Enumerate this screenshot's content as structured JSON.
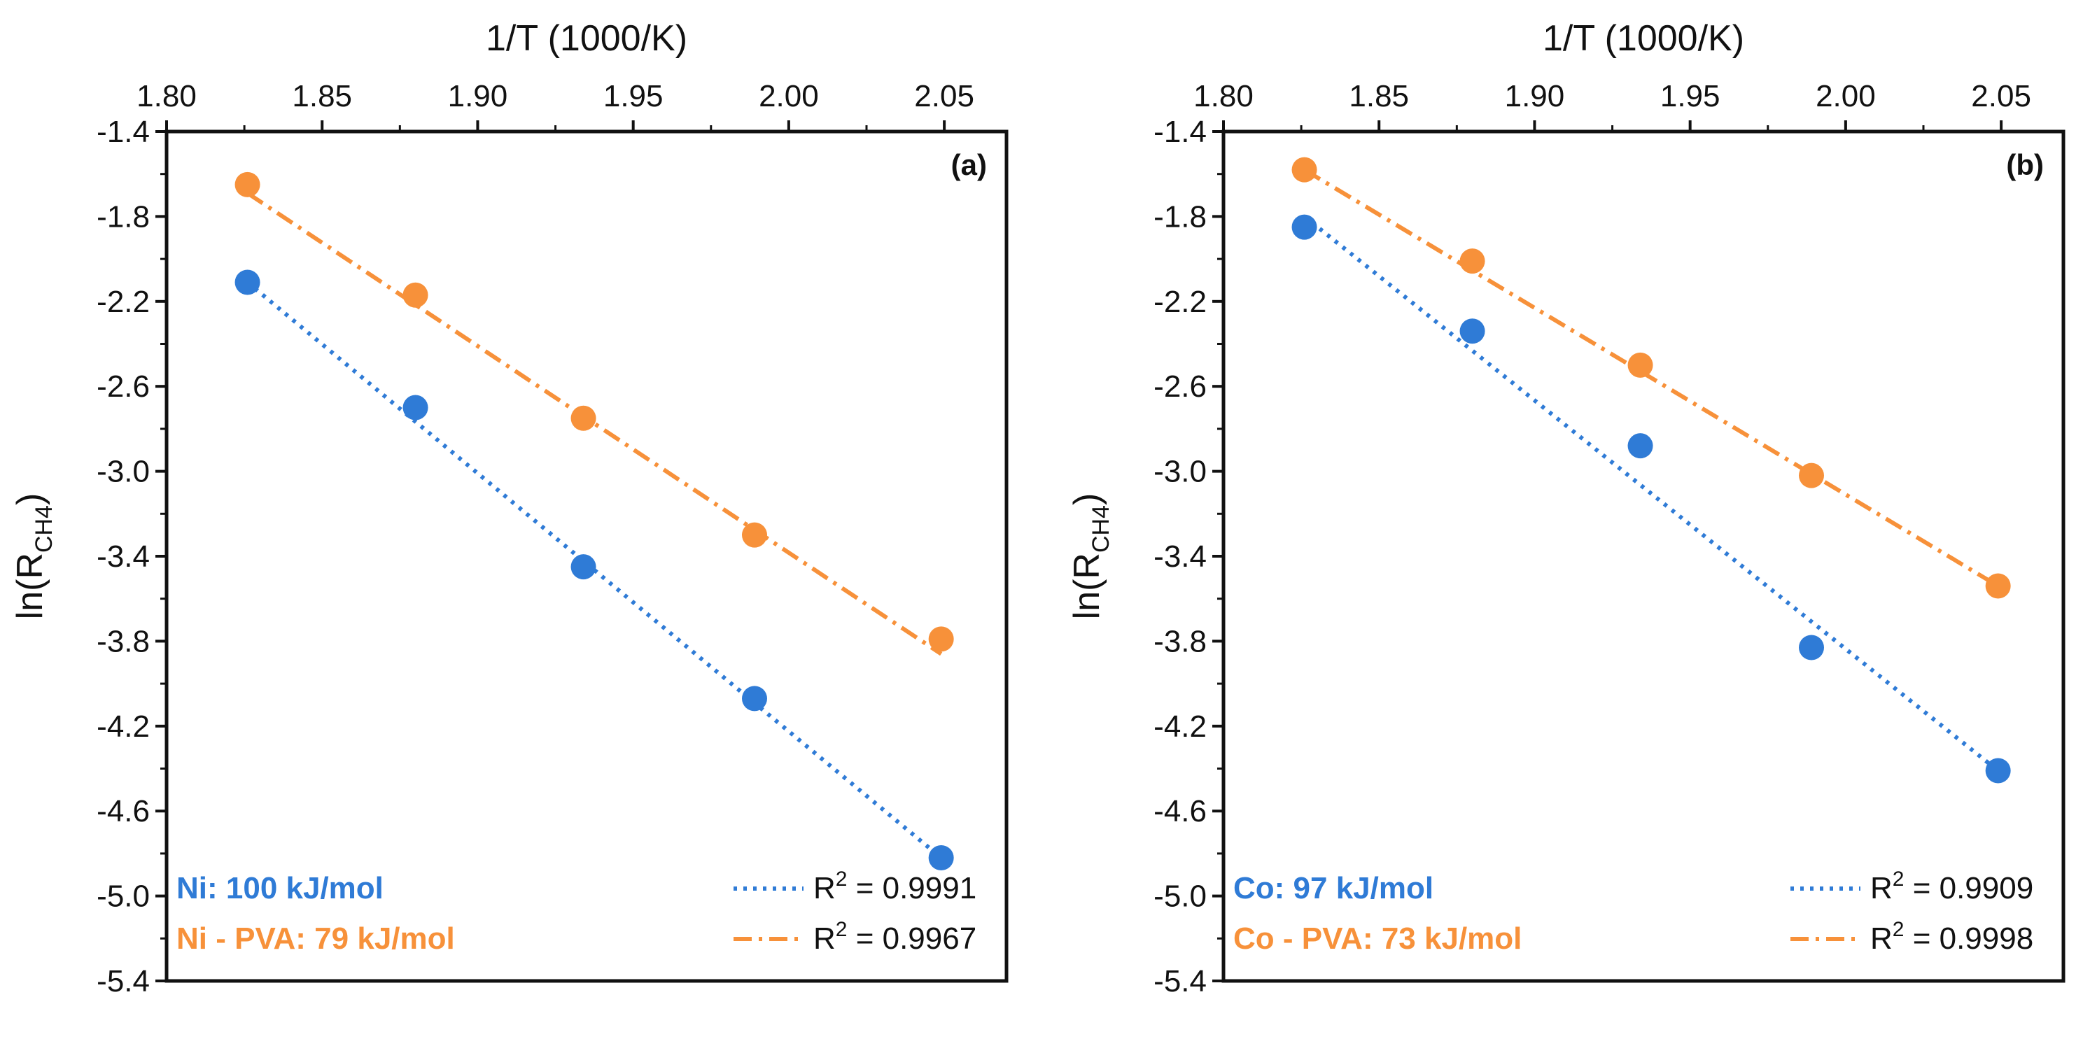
{
  "colors": {
    "blue": "#2f7bd6",
    "orange": "#f7913a",
    "axis": "#111111"
  },
  "chart_data": [
    {
      "type": "scatter",
      "panel_label": "(a)",
      "xlabel": "1/T (1000/K)",
      "ylabel_main": "ln(R",
      "ylabel_sub": "CH4",
      "ylabel_close": ")",
      "xlim": [
        1.8,
        2.07
      ],
      "ylim": [
        -5.4,
        -1.4
      ],
      "x_ticks": [
        1.8,
        1.85,
        1.9,
        1.95,
        2.0,
        2.05
      ],
      "x_tick_labels": [
        "1.80",
        "1.85",
        "1.90",
        "1.95",
        "2.00",
        "2.05"
      ],
      "y_ticks": [
        -1.4,
        -1.8,
        -2.2,
        -2.6,
        -3.0,
        -3.4,
        -3.8,
        -4.2,
        -4.6,
        -5.0,
        -5.4
      ],
      "y_tick_labels": [
        "-1.4",
        "-1.8",
        "-2.2",
        "-2.6",
        "-3.0",
        "-3.4",
        "-3.8",
        "-4.2",
        "-4.6",
        "-5.0",
        "-5.4"
      ],
      "series": [
        {
          "name": "Ni",
          "color_key": "blue",
          "line_style": "dotted",
          "x": [
            1.826,
            1.88,
            1.934,
            1.989,
            2.049
          ],
          "y": [
            -2.11,
            -2.7,
            -3.45,
            -4.07,
            -4.82
          ],
          "fit": [
            [
              1.826,
              -2.11
            ],
            [
              2.049,
              -4.82
            ]
          ],
          "label": "Ni: 100 kJ/mol",
          "r2_prefix": "R",
          "r2_sup": "2",
          "r2_value": " = 0.9991"
        },
        {
          "name": "Ni - PVA",
          "color_key": "orange",
          "line_style": "dashdot",
          "x": [
            1.826,
            1.88,
            1.934,
            1.989,
            2.049
          ],
          "y": [
            -1.65,
            -2.17,
            -2.75,
            -3.3,
            -3.79
          ],
          "fit": [
            [
              1.826,
              -1.69
            ],
            [
              2.049,
              -3.86
            ]
          ],
          "label": "Ni - PVA: 79 kJ/mol",
          "r2_prefix": "R",
          "r2_sup": "2",
          "r2_value": " = 0.9967"
        }
      ]
    },
    {
      "type": "scatter",
      "panel_label": "(b)",
      "xlabel": "1/T (1000/K)",
      "ylabel_main": "ln(R",
      "ylabel_sub": "CH4",
      "ylabel_close": ")",
      "xlim": [
        1.8,
        2.07
      ],
      "ylim": [
        -5.4,
        -1.4
      ],
      "x_ticks": [
        1.8,
        1.85,
        1.9,
        1.95,
        2.0,
        2.05
      ],
      "x_tick_labels": [
        "1.80",
        "1.85",
        "1.90",
        "1.95",
        "2.00",
        "2.05"
      ],
      "y_ticks": [
        -1.4,
        -1.8,
        -2.2,
        -2.6,
        -3.0,
        -3.4,
        -3.8,
        -4.2,
        -4.6,
        -5.0,
        -5.4
      ],
      "y_tick_labels": [
        "-1.4",
        "-1.8",
        "-2.2",
        "-2.6",
        "-3.0",
        "-3.4",
        "-3.8",
        "-4.2",
        "-4.6",
        "-5.0",
        "-5.4"
      ],
      "series": [
        {
          "name": "Co",
          "color_key": "blue",
          "line_style": "dotted",
          "x": [
            1.826,
            1.88,
            1.934,
            1.989,
            2.049
          ],
          "y": [
            -1.85,
            -2.34,
            -2.88,
            -3.83,
            -4.41
          ],
          "fit": [
            [
              1.826,
              -1.8
            ],
            [
              2.049,
              -4.41
            ]
          ],
          "label": "Co: 97 kJ/mol",
          "r2_prefix": "R",
          "r2_sup": "2",
          "r2_value": " = 0.9909"
        },
        {
          "name": "Co - PVA",
          "color_key": "orange",
          "line_style": "dashdot",
          "x": [
            1.826,
            1.88,
            1.934,
            1.989,
            2.049
          ],
          "y": [
            -1.58,
            -2.01,
            -2.5,
            -3.02,
            -3.54
          ],
          "fit": [
            [
              1.826,
              -1.58
            ],
            [
              2.049,
              -3.54
            ]
          ],
          "label": "Co - PVA: 73 kJ/mol",
          "r2_prefix": "R",
          "r2_sup": "2",
          "r2_value": " = 0.9998"
        }
      ]
    }
  ]
}
